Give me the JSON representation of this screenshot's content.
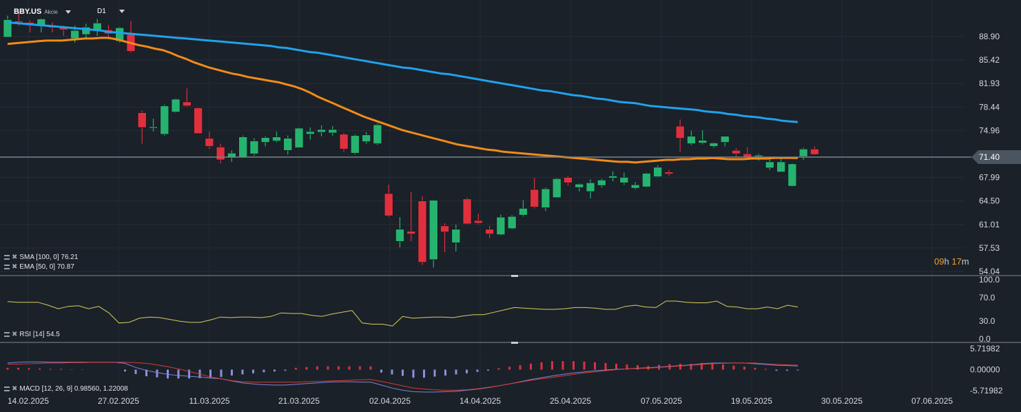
{
  "header": {
    "symbol": "BBY.US",
    "instrument_type": "Akcie",
    "timeframe": "D1"
  },
  "current_price_label": "71.40",
  "countdown": {
    "hours": "09",
    "h": "h",
    "minutes": "17",
    "m": "m"
  },
  "legend": {
    "sma": "SMA [100, 0] 76.21",
    "ema": "EMA [50, 0] 70.87",
    "rsi": "RSI [14] 54.5",
    "macd": "MACD [12, 26, 9] 0.98560, 1.22008"
  },
  "colors": {
    "background": "#1b2129",
    "up_candle": "#26b36f",
    "down_candle": "#e0303e",
    "sma": "#1fa3ec",
    "ema": "#f28c18",
    "rsi": "#d9cf5b",
    "macd_line": "#7f84d8",
    "signal_line": "#d93a34",
    "price_tag": "#4a5560"
  },
  "chart_data": [
    {
      "type": "candlestick",
      "y_ticks": [
        "88.90",
        "85.42",
        "81.93",
        "78.44",
        "74.96",
        "71.40",
        "67.99",
        "64.50",
        "61.01",
        "57.53",
        "54.04"
      ],
      "x_ticks": [
        "14.02.2025",
        "27.02.2025",
        "11.03.2025",
        "21.03.2025",
        "02.04.2025",
        "14.04.2025",
        "25.04.2025",
        "07.05.2025",
        "19.05.2025",
        "30.05.2025",
        "07.06.2025"
      ],
      "ylim": [
        54.04,
        90.8
      ],
      "current_price": 71.4,
      "candles": [
        {
          "o": 88.8,
          "h": 92.0,
          "l": 88.8,
          "c": 91.4
        },
        {
          "o": 91.2,
          "h": 92.5,
          "l": 90.5,
          "c": 91.0
        },
        {
          "o": 91.0,
          "h": 91.3,
          "l": 89.5,
          "c": 90.8
        },
        {
          "o": 90.5,
          "h": 91.6,
          "l": 89.5,
          "c": 91.5
        },
        {
          "o": 90.5,
          "h": 91.0,
          "l": 89.5,
          "c": 90.2
        },
        {
          "o": 90.2,
          "h": 90.5,
          "l": 89.0,
          "c": 89.9
        },
        {
          "o": 88.6,
          "h": 90.5,
          "l": 88.0,
          "c": 89.8
        },
        {
          "o": 89.2,
          "h": 90.8,
          "l": 88.5,
          "c": 90.3
        },
        {
          "o": 89.8,
          "h": 91.5,
          "l": 89.0,
          "c": 90.9
        },
        {
          "o": 89.9,
          "h": 90.6,
          "l": 88.5,
          "c": 89.3
        },
        {
          "o": 88.2,
          "h": 90.3,
          "l": 88.0,
          "c": 90.2
        },
        {
          "o": 89.2,
          "h": 91.2,
          "l": 86.5,
          "c": 86.7
        },
        {
          "o": 77.6,
          "h": 77.9,
          "l": 73.0,
          "c": 75.4
        },
        {
          "o": 75.3,
          "h": 76.7,
          "l": 74.8,
          "c": 75.5
        },
        {
          "o": 74.4,
          "h": 78.8,
          "l": 74.2,
          "c": 78.6
        },
        {
          "o": 77.7,
          "h": 79.7,
          "l": 77.6,
          "c": 79.6
        },
        {
          "o": 79.2,
          "h": 81.2,
          "l": 78.5,
          "c": 78.6
        },
        {
          "o": 78.3,
          "h": 78.4,
          "l": 74.5,
          "c": 74.5
        },
        {
          "o": 73.8,
          "h": 74.8,
          "l": 72.2,
          "c": 72.6
        },
        {
          "o": 72.5,
          "h": 73.0,
          "l": 70.1,
          "c": 70.6
        },
        {
          "o": 70.9,
          "h": 72.0,
          "l": 70.3,
          "c": 71.6
        },
        {
          "o": 71.0,
          "h": 74.2,
          "l": 70.9,
          "c": 74.0
        },
        {
          "o": 71.5,
          "h": 73.8,
          "l": 71.2,
          "c": 73.4
        },
        {
          "o": 73.2,
          "h": 74.1,
          "l": 72.6,
          "c": 73.9
        },
        {
          "o": 73.4,
          "h": 74.8,
          "l": 73.2,
          "c": 74.0
        },
        {
          "o": 72.0,
          "h": 74.2,
          "l": 71.4,
          "c": 73.8
        },
        {
          "o": 72.4,
          "h": 75.4,
          "l": 72.4,
          "c": 75.3
        },
        {
          "o": 74.4,
          "h": 75.4,
          "l": 73.6,
          "c": 74.8
        },
        {
          "o": 74.7,
          "h": 75.7,
          "l": 74.1,
          "c": 75.1
        },
        {
          "o": 74.6,
          "h": 75.6,
          "l": 74.2,
          "c": 75.1
        },
        {
          "o": 74.4,
          "h": 74.6,
          "l": 71.8,
          "c": 72.2
        },
        {
          "o": 71.6,
          "h": 74.4,
          "l": 71.4,
          "c": 74.2
        },
        {
          "o": 73.3,
          "h": 74.7,
          "l": 73.0,
          "c": 74.3
        },
        {
          "o": 73.0,
          "h": 76.0,
          "l": 72.8,
          "c": 75.8
        },
        {
          "o": 65.6,
          "h": 66.9,
          "l": 62.1,
          "c": 62.3
        },
        {
          "o": 58.5,
          "h": 62.1,
          "l": 57.6,
          "c": 60.3
        },
        {
          "o": 60.0,
          "h": 65.8,
          "l": 58.5,
          "c": 59.6
        },
        {
          "o": 64.5,
          "h": 65.2,
          "l": 55.0,
          "c": 55.4
        },
        {
          "o": 55.8,
          "h": 64.7,
          "l": 54.6,
          "c": 64.6
        },
        {
          "o": 60.8,
          "h": 61.2,
          "l": 56.9,
          "c": 59.9
        },
        {
          "o": 58.3,
          "h": 61.0,
          "l": 57.0,
          "c": 60.3
        },
        {
          "o": 64.8,
          "h": 65.0,
          "l": 61.0,
          "c": 61.1
        },
        {
          "o": 61.6,
          "h": 62.6,
          "l": 61.0,
          "c": 61.2
        },
        {
          "o": 60.3,
          "h": 60.8,
          "l": 59.0,
          "c": 59.6
        },
        {
          "o": 59.5,
          "h": 62.5,
          "l": 59.4,
          "c": 62.1
        },
        {
          "o": 60.4,
          "h": 62.4,
          "l": 60.3,
          "c": 62.2
        },
        {
          "o": 62.4,
          "h": 64.6,
          "l": 62.2,
          "c": 63.4
        },
        {
          "o": 66.2,
          "h": 67.9,
          "l": 63.4,
          "c": 63.6
        },
        {
          "o": 63.5,
          "h": 66.5,
          "l": 63.0,
          "c": 66.3
        },
        {
          "o": 65.0,
          "h": 67.9,
          "l": 65.0,
          "c": 67.8
        },
        {
          "o": 68.0,
          "h": 68.2,
          "l": 66.8,
          "c": 67.2
        },
        {
          "o": 66.5,
          "h": 67.1,
          "l": 65.9,
          "c": 67.0
        },
        {
          "o": 65.9,
          "h": 67.7,
          "l": 64.9,
          "c": 67.2
        },
        {
          "o": 66.8,
          "h": 67.8,
          "l": 66.5,
          "c": 67.6
        },
        {
          "o": 67.9,
          "h": 68.9,
          "l": 67.4,
          "c": 68.2
        },
        {
          "o": 67.2,
          "h": 68.7,
          "l": 66.9,
          "c": 68.0
        },
        {
          "o": 66.4,
          "h": 67.3,
          "l": 66.2,
          "c": 66.9
        },
        {
          "o": 66.6,
          "h": 68.7,
          "l": 66.5,
          "c": 68.6
        },
        {
          "o": 68.1,
          "h": 69.8,
          "l": 68.0,
          "c": 69.5
        },
        {
          "o": 68.8,
          "h": 69.1,
          "l": 68.2,
          "c": 68.5
        },
        {
          "o": 75.6,
          "h": 76.6,
          "l": 71.8,
          "c": 73.8
        },
        {
          "o": 73.0,
          "h": 74.9,
          "l": 72.8,
          "c": 74.1
        },
        {
          "o": 73.1,
          "h": 75.0,
          "l": 72.9,
          "c": 73.5
        },
        {
          "o": 72.6,
          "h": 73.2,
          "l": 72.4,
          "c": 73.1
        },
        {
          "o": 73.2,
          "h": 74.1,
          "l": 72.6,
          "c": 74.1
        },
        {
          "o": 72.0,
          "h": 72.3,
          "l": 71.1,
          "c": 71.5
        },
        {
          "o": 71.5,
          "h": 72.5,
          "l": 70.8,
          "c": 70.9
        },
        {
          "o": 71.1,
          "h": 71.5,
          "l": 70.5,
          "c": 71.3
        },
        {
          "o": 69.4,
          "h": 71.1,
          "l": 69.1,
          "c": 70.3
        },
        {
          "o": 68.8,
          "h": 71.0,
          "l": 68.8,
          "c": 70.3
        },
        {
          "o": 66.7,
          "h": 70.1,
          "l": 66.6,
          "c": 70.0
        },
        {
          "o": 71.1,
          "h": 72.4,
          "l": 70.6,
          "c": 72.2
        },
        {
          "o": 72.2,
          "h": 72.6,
          "l": 71.3,
          "c": 71.4
        }
      ],
      "sma_100": [
        91.0,
        90.9,
        90.8,
        90.7,
        90.6,
        90.5,
        90.4,
        90.3,
        90.2,
        90.1,
        90.0,
        89.9,
        89.8,
        89.6,
        89.5,
        89.4,
        89.3,
        89.2,
        89.1,
        89.0,
        88.9,
        88.8,
        88.7,
        88.6,
        88.5,
        88.4,
        88.3,
        88.2,
        88.1,
        88.0,
        87.9,
        87.8,
        87.7,
        87.6,
        87.5,
        87.3,
        87.2,
        87.0,
        86.8,
        86.6,
        86.5,
        86.3,
        86.1,
        85.9,
        85.7,
        85.5,
        85.3,
        85.1,
        84.9,
        84.7,
        84.5,
        84.3,
        84.2,
        84.0,
        83.8,
        83.6,
        83.4,
        83.3,
        83.1,
        82.9,
        82.7,
        82.5,
        82.3,
        82.1,
        81.9,
        81.7,
        81.5,
        81.3,
        81.1,
        80.9,
        80.8,
        80.6,
        80.4,
        80.2,
        80.1,
        79.9,
        79.7,
        79.6,
        79.4,
        79.2,
        79.1,
        79.0,
        78.8,
        78.6,
        78.5,
        78.4,
        78.3,
        78.2,
        78.1,
        78.0,
        77.8,
        77.7,
        77.6,
        77.4,
        77.3,
        77.1,
        77.0,
        76.9,
        76.7,
        76.6,
        76.4,
        76.3,
        76.21
      ],
      "ema_50": [
        87.8,
        87.9,
        88.0,
        88.1,
        88.2,
        88.3,
        88.3,
        88.3,
        88.4,
        88.5,
        88.6,
        88.6,
        88.7,
        88.7,
        88.5,
        88.2,
        87.9,
        87.6,
        87.4,
        87.1,
        86.9,
        86.5,
        86.0,
        85.6,
        85.1,
        84.7,
        84.3,
        84.0,
        83.7,
        83.4,
        83.2,
        82.9,
        82.7,
        82.5,
        82.3,
        82.1,
        81.8,
        81.5,
        81.1,
        80.6,
        80.0,
        79.5,
        79.0,
        78.5,
        78.0,
        77.5,
        77.0,
        76.6,
        76.2,
        75.8,
        75.4,
        75.0,
        74.7,
        74.4,
        74.1,
        73.8,
        73.5,
        73.2,
        72.9,
        72.7,
        72.5,
        72.3,
        72.1,
        72.0,
        71.8,
        71.7,
        71.6,
        71.5,
        71.4,
        71.3,
        71.2,
        71.1,
        71.0,
        70.9,
        70.8,
        70.7,
        70.6,
        70.5,
        70.4,
        70.3,
        70.3,
        70.2,
        70.3,
        70.4,
        70.5,
        70.6,
        70.6,
        70.7,
        70.7,
        70.8,
        70.8,
        70.87,
        70.8,
        70.7,
        70.7,
        70.7,
        70.8,
        70.8,
        70.8,
        70.9,
        70.9,
        70.9,
        70.87
      ]
    },
    {
      "type": "line",
      "y_ticks": [
        "100.0",
        "70.0",
        "30.0",
        "0.0"
      ],
      "ylim": [
        0,
        100
      ],
      "rsi_values": [
        63,
        62,
        62,
        62,
        57,
        51,
        55,
        56,
        51,
        55,
        44,
        27,
        28,
        35,
        37,
        36,
        33,
        30,
        28,
        28,
        32,
        37,
        36,
        37,
        37,
        36,
        38,
        44,
        43,
        43,
        40,
        38,
        42,
        45,
        48,
        27,
        25,
        25,
        22,
        38,
        35,
        36,
        37,
        37,
        36,
        39,
        41,
        41,
        45,
        49,
        53,
        52,
        51,
        50,
        50,
        51,
        53,
        53,
        52,
        50,
        50,
        55,
        57,
        54,
        53,
        64,
        64,
        62,
        61,
        61,
        64,
        55,
        54,
        51,
        51,
        54,
        51,
        57,
        54
      ]
    },
    {
      "type": "bar",
      "y_ticks": [
        "5.71982",
        "0.00000",
        "-5.71982"
      ],
      "ylim": [
        -5.71982,
        5.71982
      ],
      "histogram": [
        0.5,
        0.5,
        0.4,
        0.3,
        0.2,
        0.2,
        0.1,
        0.1,
        0.0,
        0.0,
        0.0,
        -0.5,
        -1.2,
        -1.8,
        -2.1,
        -2.4,
        -2.4,
        -2.4,
        -2.3,
        -2.2,
        -2.0,
        -1.6,
        -1.3,
        -1.0,
        -0.7,
        -0.5,
        -0.3,
        0.5,
        0.7,
        0.9,
        0.9,
        0.9,
        0.9,
        0.9,
        0.9,
        -0.8,
        -1.3,
        -1.7,
        -2.2,
        -2.2,
        -1.9,
        -1.6,
        -1.3,
        -1.0,
        -0.6,
        -0.3,
        0.4,
        0.8,
        1.2,
        1.6,
        2.0,
        2.3,
        2.3,
        2.3,
        2.2,
        2.0,
        1.8,
        1.6,
        1.4,
        1.2,
        1.0,
        1.3,
        1.5,
        1.6,
        1.6,
        1.8,
        1.7,
        1.4,
        1.1,
        0.8,
        0.5,
        0.2,
        -0.3,
        -0.3,
        -0.2
      ],
      "macd_line": [
        1.8,
        2.0,
        2.1,
        2.1,
        2.0,
        2.0,
        2.0,
        2.0,
        2.0,
        2.0,
        2.0,
        1.7,
        0.6,
        -0.2,
        -0.8,
        -1.3,
        -1.6,
        -1.8,
        -2.0,
        -2.3,
        -2.5,
        -3.1,
        -3.6,
        -3.9,
        -4.1,
        -4.2,
        -4.2,
        -4.0,
        -3.8,
        -3.6,
        -3.4,
        -3.3,
        -3.3,
        -3.4,
        -3.4,
        -4.2,
        -5.0,
        -5.6,
        -6.0,
        -6.1,
        -6.1,
        -6.0,
        -5.9,
        -5.6,
        -5.3,
        -4.9,
        -4.4,
        -3.9,
        -3.3,
        -2.7,
        -2.2,
        -1.7,
        -1.3,
        -0.9,
        -0.6,
        -0.3,
        -0.1,
        0.1,
        0.2,
        0.4,
        0.5,
        0.7,
        0.9,
        1.1,
        1.3,
        1.6,
        1.8,
        1.8,
        1.8,
        1.8,
        1.6,
        1.4,
        1.2,
        1.1,
        0.99
      ],
      "signal_line": [
        1.5,
        1.5,
        1.6,
        1.7,
        1.8,
        1.8,
        1.9,
        1.9,
        2.0,
        2.0,
        2.0,
        2.0,
        1.9,
        1.7,
        1.3,
        0.8,
        0.2,
        -0.5,
        -1.2,
        -2.0,
        -2.5,
        -3.0,
        -3.3,
        -3.4,
        -3.4,
        -3.4,
        -3.4,
        -3.4,
        -3.3,
        -3.2,
        -3.1,
        -3.0,
        -2.9,
        -2.8,
        -2.7,
        -3.2,
        -3.8,
        -4.4,
        -5.0,
        -5.3,
        -5.5,
        -5.6,
        -5.6,
        -5.5,
        -5.2,
        -4.8,
        -4.4,
        -3.9,
        -3.4,
        -2.9,
        -2.5,
        -2.1,
        -1.7,
        -1.3,
        -0.9,
        -0.6,
        -0.3,
        0.0,
        0.2,
        0.3,
        0.4,
        0.6,
        0.8,
        1.0,
        1.2,
        1.4,
        1.6,
        1.7,
        1.8,
        1.8,
        1.8,
        1.6,
        1.4,
        1.3,
        1.22
      ]
    }
  ]
}
